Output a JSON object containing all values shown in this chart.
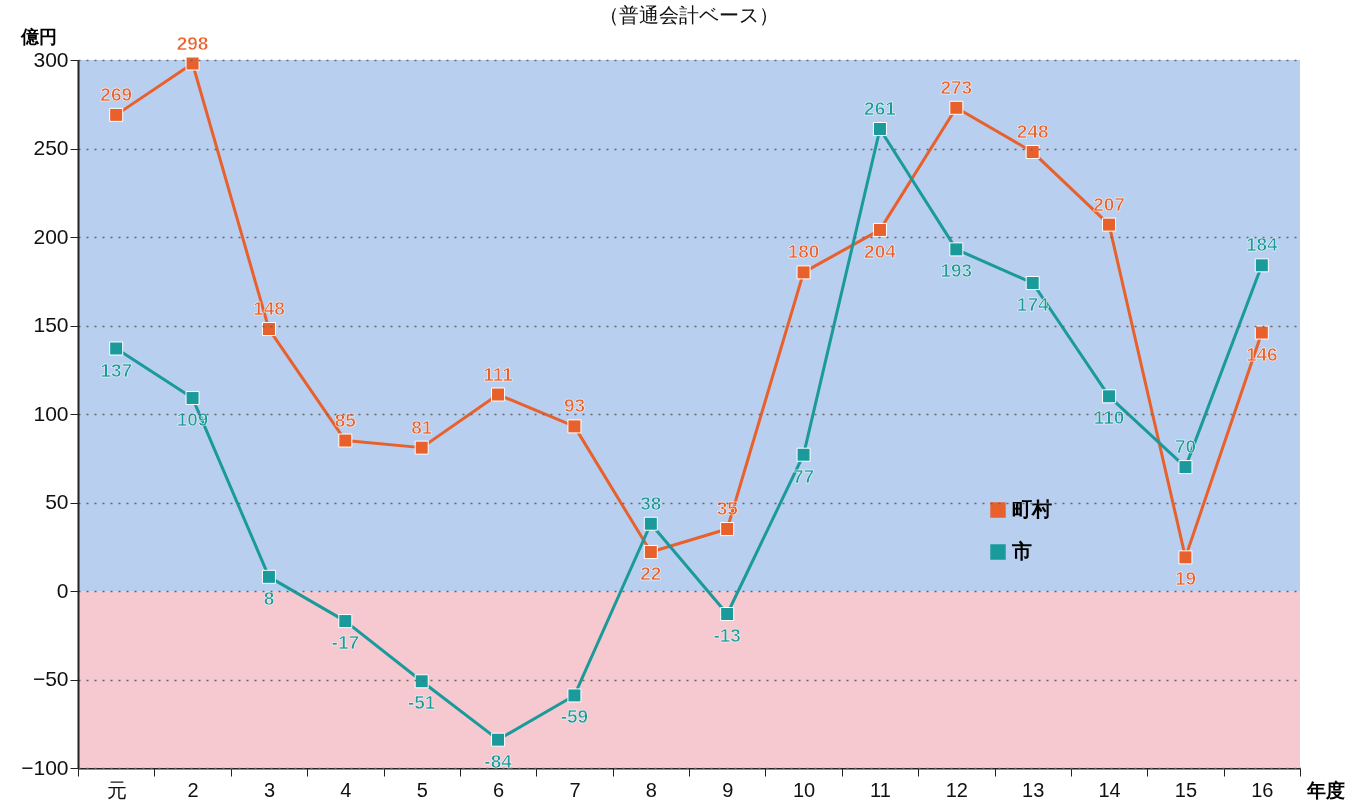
{
  "chart_data": {
    "type": "line",
    "title": "（普通会計ベース）",
    "xlabel": "年度",
    "ylabel": "億円",
    "categories": [
      "元",
      "2",
      "3",
      "4",
      "5",
      "6",
      "7",
      "8",
      "9",
      "10",
      "11",
      "12",
      "13",
      "14",
      "15",
      "16"
    ],
    "series": [
      {
        "name": "町村",
        "color": "#e8612c",
        "values": [
          269,
          298,
          148,
          85,
          81,
          111,
          93,
          22,
          35,
          180,
          204,
          273,
          248,
          207,
          19,
          146
        ]
      },
      {
        "name": "市",
        "color": "#1a9a9a",
        "values": [
          137,
          109,
          8,
          -17,
          -51,
          -84,
          -59,
          38,
          -13,
          77,
          261,
          193,
          174,
          110,
          70,
          184
        ]
      }
    ],
    "ylim": [
      -100,
      300
    ],
    "yticks": [
      -100,
      -50,
      0,
      50,
      100,
      150,
      200,
      250,
      300
    ],
    "bands": [
      {
        "axis": "y",
        "from": 0,
        "to": 300,
        "color": "#b8cff0"
      },
      {
        "axis": "y",
        "from": -100,
        "to": 0,
        "color": "#f6c8d0"
      }
    ],
    "grid": "y",
    "legend": "right",
    "marker": "square",
    "line_style": "solid",
    "data_labels": true
  }
}
